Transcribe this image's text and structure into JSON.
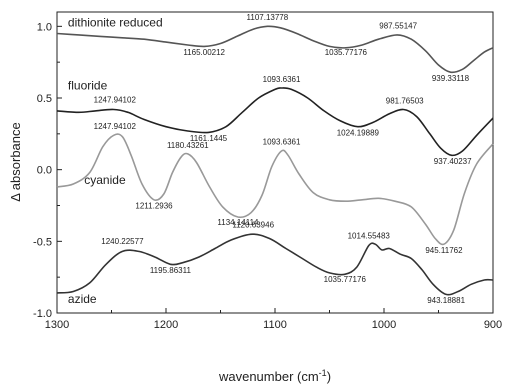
{
  "chart_data": {
    "type": "line",
    "xlabel": "wavenumber (cm",
    "xlabel_sup": "-1",
    "xlabel_end": ")",
    "ylabel": "Δ absorbance",
    "xlim": [
      1300,
      900
    ],
    "ylim": [
      -1.0,
      1.1
    ],
    "x_ticks": [
      "1300",
      "1200",
      "1100",
      "1000",
      "900"
    ],
    "y_ticks": [
      "-1.0",
      "-0.5",
      "0.0",
      "0.5",
      "1.0"
    ],
    "grid": false,
    "series": [
      {
        "name": "dithionite reduced",
        "color": "#555555",
        "points": [
          [
            1300,
            0.95
          ],
          [
            1280,
            0.94
          ],
          [
            1260,
            0.93
          ],
          [
            1240,
            0.92
          ],
          [
            1220,
            0.91
          ],
          [
            1200,
            0.89
          ],
          [
            1180,
            0.87
          ],
          [
            1165,
            0.86
          ],
          [
            1150,
            0.88
          ],
          [
            1135,
            0.93
          ],
          [
            1120,
            0.98
          ],
          [
            1107,
            1.0
          ],
          [
            1095,
            0.99
          ],
          [
            1080,
            0.95
          ],
          [
            1065,
            0.9
          ],
          [
            1050,
            0.86
          ],
          [
            1035,
            0.85
          ],
          [
            1020,
            0.87
          ],
          [
            1005,
            0.91
          ],
          [
            988,
            0.94
          ],
          [
            975,
            0.91
          ],
          [
            962,
            0.83
          ],
          [
            950,
            0.73
          ],
          [
            939,
            0.68
          ],
          [
            928,
            0.7
          ],
          [
            918,
            0.76
          ],
          [
            908,
            0.82
          ],
          [
            900,
            0.85
          ]
        ]
      },
      {
        "name": "fluoride",
        "color": "#222222",
        "points": [
          [
            1300,
            0.41
          ],
          [
            1280,
            0.4
          ],
          [
            1265,
            0.41
          ],
          [
            1248,
            0.42
          ],
          [
            1235,
            0.4
          ],
          [
            1220,
            0.35
          ],
          [
            1200,
            0.3
          ],
          [
            1180,
            0.27
          ],
          [
            1161,
            0.26
          ],
          [
            1145,
            0.3
          ],
          [
            1130,
            0.4
          ],
          [
            1115,
            0.5
          ],
          [
            1100,
            0.56
          ],
          [
            1094,
            0.57
          ],
          [
            1085,
            0.56
          ],
          [
            1070,
            0.5
          ],
          [
            1055,
            0.41
          ],
          [
            1040,
            0.34
          ],
          [
            1024,
            0.3
          ],
          [
            1010,
            0.33
          ],
          [
            995,
            0.39
          ],
          [
            982,
            0.42
          ],
          [
            970,
            0.37
          ],
          [
            958,
            0.25
          ],
          [
            948,
            0.15
          ],
          [
            938,
            0.1
          ],
          [
            928,
            0.13
          ],
          [
            915,
            0.24
          ],
          [
            900,
            0.36
          ]
        ]
      },
      {
        "name": "cyanide",
        "color": "#999999",
        "points": [
          [
            1300,
            -0.12
          ],
          [
            1285,
            -0.1
          ],
          [
            1270,
            -0.02
          ],
          [
            1258,
            0.16
          ],
          [
            1248,
            0.24
          ],
          [
            1240,
            0.23
          ],
          [
            1232,
            0.1
          ],
          [
            1222,
            -0.1
          ],
          [
            1211,
            -0.21
          ],
          [
            1202,
            -0.17
          ],
          [
            1194,
            -0.02
          ],
          [
            1186,
            0.09
          ],
          [
            1180,
            0.11
          ],
          [
            1172,
            0.05
          ],
          [
            1160,
            -0.12
          ],
          [
            1148,
            -0.26
          ],
          [
            1134,
            -0.33
          ],
          [
            1122,
            -0.3
          ],
          [
            1112,
            -0.18
          ],
          [
            1103,
            0.02
          ],
          [
            1094,
            0.13
          ],
          [
            1088,
            0.1
          ],
          [
            1078,
            -0.03
          ],
          [
            1065,
            -0.16
          ],
          [
            1050,
            -0.21
          ],
          [
            1035,
            -0.22
          ],
          [
            1020,
            -0.21
          ],
          [
            1005,
            -0.2
          ],
          [
            990,
            -0.22
          ],
          [
            975,
            -0.26
          ],
          [
            962,
            -0.38
          ],
          [
            953,
            -0.48
          ],
          [
            945,
            -0.52
          ],
          [
            936,
            -0.42
          ],
          [
            926,
            -0.16
          ],
          [
            915,
            0.04
          ],
          [
            900,
            0.18
          ]
        ]
      },
      {
        "name": "azide",
        "color": "#333333",
        "points": [
          [
            1300,
            -0.86
          ],
          [
            1285,
            -0.85
          ],
          [
            1270,
            -0.79
          ],
          [
            1255,
            -0.66
          ],
          [
            1240,
            -0.57
          ],
          [
            1225,
            -0.57
          ],
          [
            1210,
            -0.61
          ],
          [
            1196,
            -0.66
          ],
          [
            1185,
            -0.65
          ],
          [
            1170,
            -0.61
          ],
          [
            1155,
            -0.55
          ],
          [
            1140,
            -0.49
          ],
          [
            1121,
            -0.45
          ],
          [
            1105,
            -0.48
          ],
          [
            1090,
            -0.55
          ],
          [
            1075,
            -0.62
          ],
          [
            1062,
            -0.68
          ],
          [
            1050,
            -0.72
          ],
          [
            1036,
            -0.73
          ],
          [
            1025,
            -0.68
          ],
          [
            1014,
            -0.53
          ],
          [
            1008,
            -0.52
          ],
          [
            1002,
            -0.56
          ],
          [
            995,
            -0.55
          ],
          [
            985,
            -0.59
          ],
          [
            975,
            -0.62
          ],
          [
            965,
            -0.7
          ],
          [
            955,
            -0.8
          ],
          [
            943,
            -0.87
          ],
          [
            932,
            -0.85
          ],
          [
            920,
            -0.8
          ],
          [
            908,
            -0.77
          ],
          [
            900,
            -0.77
          ]
        ]
      }
    ],
    "series_labels": [
      {
        "text": "dithionite reduced",
        "x": 1290,
        "y": 1.0
      },
      {
        "text": "fluoride",
        "x": 1290,
        "y": 0.56
      },
      {
        "text": "cyanide",
        "x": 1275,
        "y": -0.1
      },
      {
        "text": "azide",
        "x": 1290,
        "y": -0.93
      }
    ],
    "annotations": [
      {
        "text": "1107.13778",
        "x": 1107,
        "y": 1.045
      },
      {
        "text": "1165.00212",
        "x": 1165,
        "y": 0.8
      },
      {
        "text": "1035.77176",
        "x": 1035,
        "y": 0.8
      },
      {
        "text": "987.55147",
        "x": 987,
        "y": 0.985
      },
      {
        "text": "939.33118",
        "x": 939,
        "y": 0.62
      },
      {
        "text": "1247.94102",
        "x": 1247,
        "y": 0.47
      },
      {
        "text": "1093.6361",
        "x": 1094,
        "y": 0.61
      },
      {
        "text": "981.76503",
        "x": 981,
        "y": 0.46
      },
      {
        "text": "1161.1445",
        "x": 1161,
        "y": 0.2
      },
      {
        "text": "1024.19889",
        "x": 1024,
        "y": 0.24
      },
      {
        "text": "937.40237",
        "x": 937,
        "y": 0.04
      },
      {
        "text": "1247.94102",
        "x": 1247,
        "y": 0.285
      },
      {
        "text": "1093.6361",
        "x": 1094,
        "y": 0.175
      },
      {
        "text": "1180.43261",
        "x": 1180,
        "y": 0.15
      },
      {
        "text": "1211.2936",
        "x": 1211,
        "y": -0.27
      },
      {
        "text": "1134.14114",
        "x": 1134,
        "y": -0.385
      },
      {
        "text": "1120.63946",
        "x": 1120,
        "y": -0.405
      },
      {
        "text": "945.11762",
        "x": 945,
        "y": -0.58
      },
      {
        "text": "1240.22577",
        "x": 1240,
        "y": -0.52
      },
      {
        "text": "1014.55483",
        "x": 1014,
        "y": -0.48
      },
      {
        "text": "1195.86311",
        "x": 1196,
        "y": -0.72
      },
      {
        "text": "1035.77176",
        "x": 1036,
        "y": -0.785
      },
      {
        "text": "943.18881",
        "x": 943,
        "y": -0.93
      }
    ]
  }
}
